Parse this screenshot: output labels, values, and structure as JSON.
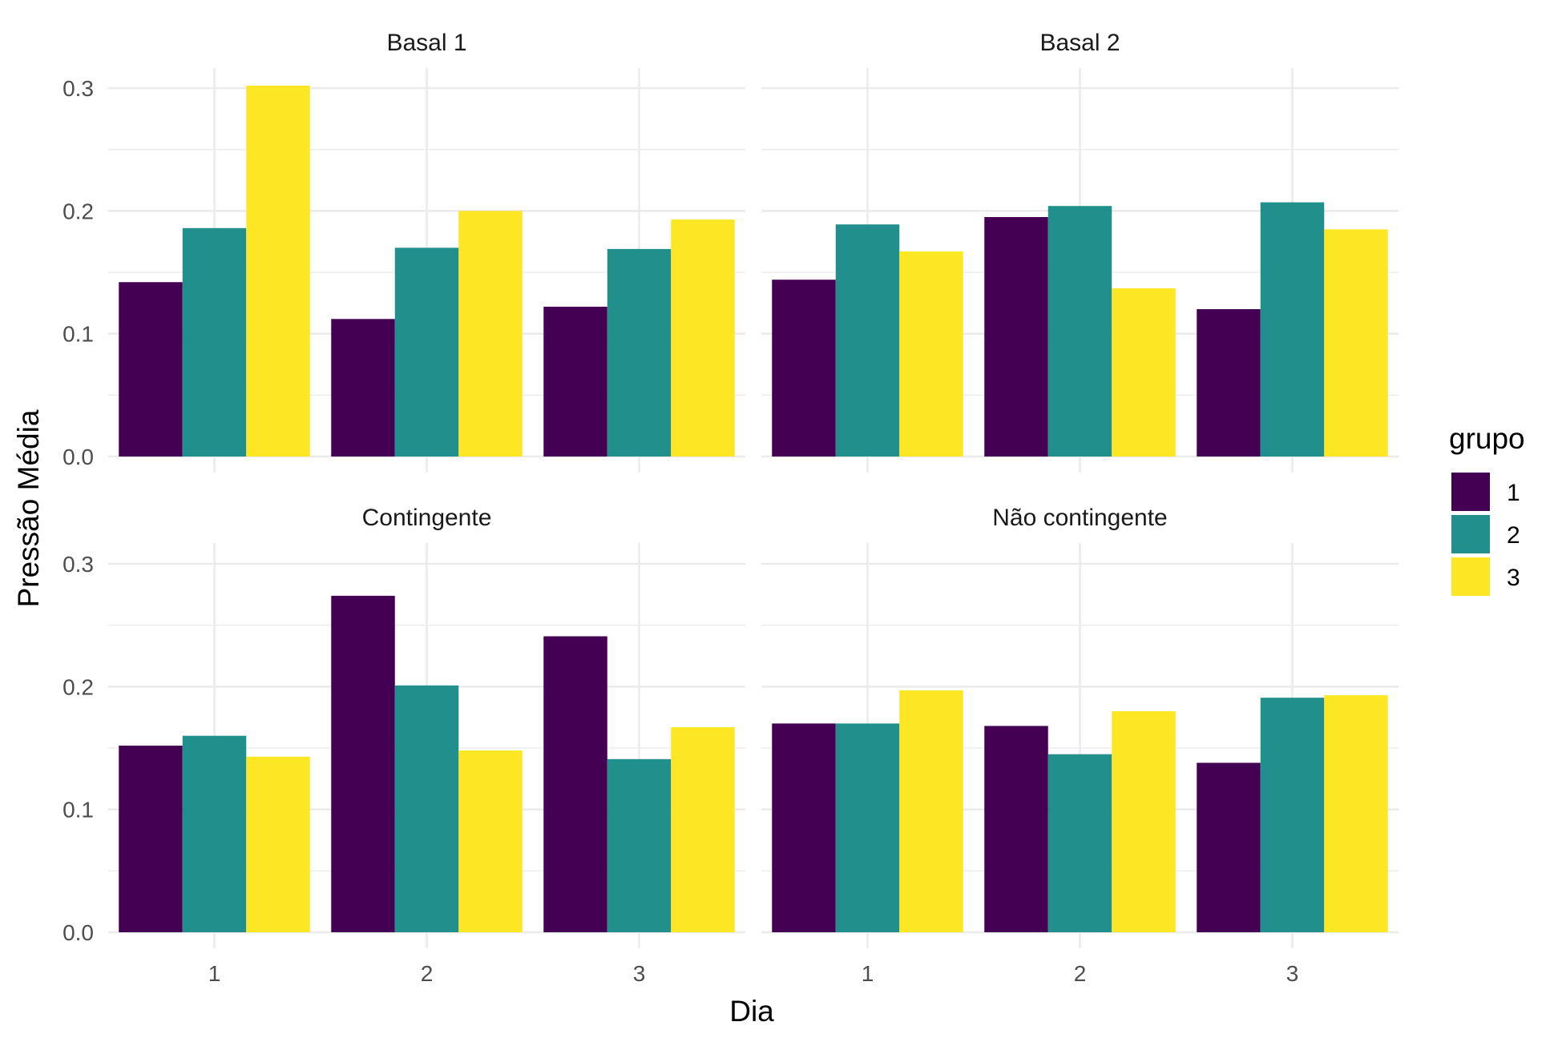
{
  "chart_data": {
    "type": "bar",
    "layout": "facet-grid-2x2",
    "xlabel": "Dia",
    "ylabel": "Pressão Média",
    "categories": [
      "1",
      "2",
      "3"
    ],
    "ylim": [
      0,
      0.3
    ],
    "yticks": [
      "0.0",
      "0.1",
      "0.2",
      "0.3"
    ],
    "grid": true,
    "legend": {
      "title": "grupo",
      "placement": "right",
      "entries": [
        {
          "label": "1",
          "color": "#440154"
        },
        {
          "label": "2",
          "color": "#21908C"
        },
        {
          "label": "3",
          "color": "#FDE725"
        }
      ]
    },
    "panels": [
      {
        "title": "Basal 1",
        "series": [
          {
            "name": "1",
            "values": [
              0.142,
              0.112,
              0.122
            ]
          },
          {
            "name": "2",
            "values": [
              0.186,
              0.17,
              0.169
            ]
          },
          {
            "name": "3",
            "values": [
              0.302,
              0.2,
              0.193
            ]
          }
        ]
      },
      {
        "title": "Basal 2",
        "series": [
          {
            "name": "1",
            "values": [
              0.144,
              0.195,
              0.12
            ]
          },
          {
            "name": "2",
            "values": [
              0.189,
              0.204,
              0.207
            ]
          },
          {
            "name": "3",
            "values": [
              0.167,
              0.137,
              0.185
            ]
          }
        ]
      },
      {
        "title": "Contingente",
        "series": [
          {
            "name": "1",
            "values": [
              0.152,
              0.274,
              0.241
            ]
          },
          {
            "name": "2",
            "values": [
              0.16,
              0.201,
              0.141
            ]
          },
          {
            "name": "3",
            "values": [
              0.143,
              0.148,
              0.167
            ]
          }
        ]
      },
      {
        "title": "Não contingente",
        "series": [
          {
            "name": "1",
            "values": [
              0.17,
              0.168,
              0.138
            ]
          },
          {
            "name": "2",
            "values": [
              0.17,
              0.145,
              0.191
            ]
          },
          {
            "name": "3",
            "values": [
              0.197,
              0.18,
              0.193
            ]
          }
        ]
      }
    ]
  }
}
